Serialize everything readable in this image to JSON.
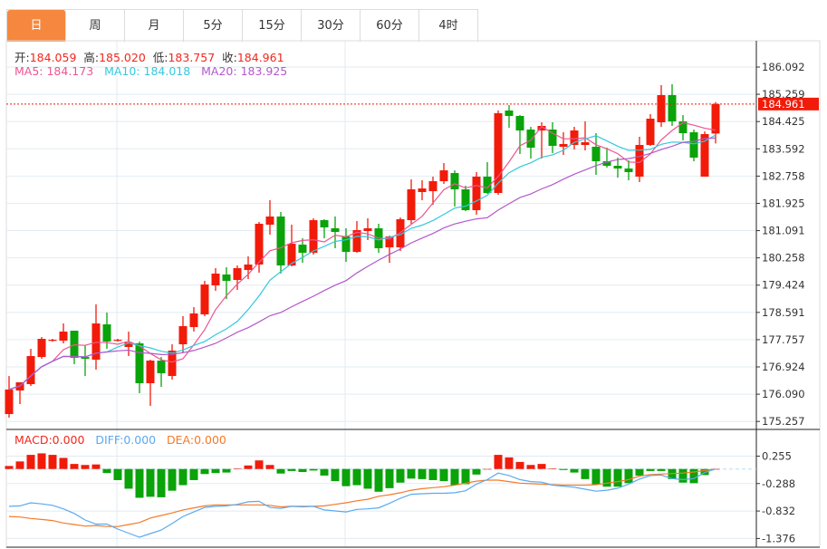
{
  "tabs": [
    {
      "label": "日",
      "active": true
    },
    {
      "label": "周"
    },
    {
      "label": "月"
    },
    {
      "label": "5分"
    },
    {
      "label": "15分"
    },
    {
      "label": "30分"
    },
    {
      "label": "60分"
    },
    {
      "label": "4时"
    }
  ],
  "ohlc": {
    "open_label": "开:",
    "open": "184.059",
    "high_label": "高:",
    "high": "185.020",
    "low_label": "低:",
    "low": "183.757",
    "close_label": "收:",
    "close": "184.961"
  },
  "ma": {
    "ma5": "MA5: 184.173",
    "ma10": "MA10: 184.018",
    "ma20": "MA20: 183.925"
  },
  "macd_legend": {
    "macd": "MACD:0.000",
    "diff": "DIFF:0.000",
    "dea": "DEA:0.000"
  },
  "colors": {
    "up": "#f21b0a",
    "down": "#0aa30a",
    "ma5": "#ee5590",
    "ma10": "#35c8de",
    "ma20": "#b457cc",
    "diff": "#5aaaf0",
    "dea": "#f57a28",
    "active_tab": "#f5883e",
    "grid": "#e2ebf2"
  },
  "chart_data": [
    {
      "type": "candlestick",
      "price_ticks": [
        "186.092",
        "185.259",
        "184.425",
        "183.592",
        "182.758",
        "181.925",
        "181.091",
        "180.258",
        "179.424",
        "178.591",
        "177.757",
        "176.924",
        "176.090",
        "175.257"
      ],
      "ylim": [
        175.257,
        186.092
      ],
      "last_price": "184.961",
      "moving_averages": [
        5,
        10,
        20
      ],
      "candles_ohlc": [
        [
          175.483,
          176.646,
          175.372,
          176.231
        ],
        [
          176.203,
          176.453,
          175.788,
          176.453
        ],
        [
          176.397,
          177.477,
          176.342,
          177.256
        ],
        [
          177.228,
          177.838,
          177.173,
          177.782
        ],
        [
          177.727,
          177.782,
          177.699,
          177.754
        ],
        [
          177.727,
          178.253,
          177.644,
          178.004
        ],
        [
          178.031,
          178.031,
          177.007,
          177.2
        ],
        [
          177.228,
          177.588,
          176.646,
          177.173
        ],
        [
          177.145,
          178.835,
          176.84,
          178.253
        ],
        [
          178.225,
          178.586,
          177.477,
          177.699
        ],
        [
          177.727,
          177.782,
          177.699,
          177.754
        ],
        [
          177.533,
          178.004,
          177.256,
          177.671
        ],
        [
          177.644,
          177.699,
          176.12,
          176.425
        ],
        [
          176.425,
          177.145,
          175.732,
          177.117
        ],
        [
          177.117,
          177.228,
          176.314,
          176.73
        ],
        [
          176.646,
          177.616,
          176.536,
          177.422
        ],
        [
          177.616,
          178.475,
          177.367,
          178.17
        ],
        [
          178.142,
          178.752,
          178.004,
          178.558
        ],
        [
          178.53,
          179.555,
          178.475,
          179.444
        ],
        [
          179.417,
          179.943,
          179.25,
          179.777
        ],
        [
          179.749,
          179.971,
          179.001,
          179.555
        ],
        [
          179.583,
          180.026,
          179.278,
          179.943
        ],
        [
          179.887,
          180.303,
          179.61,
          180.054
        ],
        [
          180.054,
          181.356,
          179.804,
          181.3
        ],
        [
          181.272,
          182.02,
          180.968,
          181.522
        ],
        [
          181.522,
          181.66,
          179.777,
          180.026
        ],
        [
          180.026,
          181.272,
          179.998,
          180.691
        ],
        [
          180.663,
          180.857,
          180.109,
          180.414
        ],
        [
          180.414,
          181.467,
          180.358,
          181.411
        ],
        [
          181.411,
          181.439,
          180.857,
          181.189
        ],
        [
          181.162,
          181.522,
          180.552,
          181.051
        ],
        [
          180.912,
          181.162,
          180.137,
          180.441
        ],
        [
          180.441,
          181.383,
          180.414,
          181.106
        ],
        [
          181.079,
          181.467,
          180.802,
          181.162
        ],
        [
          181.162,
          181.3,
          180.414,
          180.552
        ],
        [
          180.58,
          180.94,
          180.109,
          180.912
        ],
        [
          180.58,
          181.494,
          180.469,
          181.439
        ],
        [
          181.411,
          182.657,
          181.3,
          182.353
        ],
        [
          182.27,
          182.63,
          182.02,
          182.38
        ],
        [
          182.297,
          182.741,
          181.882,
          182.602
        ],
        [
          182.602,
          183.156,
          182.519,
          182.934
        ],
        [
          182.851,
          182.934,
          181.826,
          182.353
        ],
        [
          182.353,
          182.464,
          181.688,
          181.716
        ],
        [
          181.716,
          182.879,
          181.577,
          182.741
        ],
        [
          182.741,
          183.184,
          182.214,
          182.242
        ],
        [
          182.242,
          184.763,
          182.187,
          184.68
        ],
        [
          184.763,
          184.929,
          184.236,
          184.596
        ],
        [
          184.596,
          184.624,
          183.433,
          184.153
        ],
        [
          184.181,
          184.264,
          183.295,
          183.627
        ],
        [
          184.153,
          184.403,
          183.295,
          184.292
        ],
        [
          184.181,
          184.403,
          183.461,
          183.682
        ],
        [
          183.655,
          184.098,
          183.405,
          183.738
        ],
        [
          183.71,
          184.264,
          183.571,
          184.153
        ],
        [
          183.71,
          184.43,
          183.544,
          183.793
        ],
        [
          183.655,
          184.07,
          182.796,
          183.211
        ],
        [
          183.211,
          183.627,
          183.018,
          183.073
        ],
        [
          183.073,
          183.322,
          182.713,
          182.99
        ],
        [
          182.99,
          183.239,
          182.63,
          182.879
        ],
        [
          182.741,
          183.959,
          182.574,
          183.71
        ],
        [
          183.71,
          184.652,
          183.682,
          184.513
        ],
        [
          184.403,
          185.538,
          184.264,
          185.234
        ],
        [
          185.234,
          185.566,
          184.292,
          184.43
        ],
        [
          184.43,
          184.624,
          183.849,
          184.07
        ],
        [
          184.098,
          184.181,
          183.211,
          183.322
        ],
        [
          182.741,
          184.125,
          182.741,
          184.042
        ],
        [
          184.059,
          185.02,
          183.757,
          184.961
        ]
      ]
    },
    {
      "type": "bar+line",
      "ticks": [
        "0.255",
        "-0.288",
        "-0.832",
        "-1.376"
      ],
      "ylim": [
        -1.5,
        0.55
      ],
      "macd_hist": [
        0.06,
        0.15,
        0.28,
        0.31,
        0.28,
        0.22,
        0.1,
        0.08,
        0.09,
        -0.08,
        -0.22,
        -0.39,
        -0.57,
        -0.55,
        -0.56,
        -0.43,
        -0.32,
        -0.22,
        -0.1,
        -0.08,
        -0.07,
        0.01,
        0.07,
        0.17,
        0.08,
        -0.09,
        -0.04,
        -0.06,
        -0.03,
        -0.13,
        -0.24,
        -0.34,
        -0.32,
        -0.39,
        -0.45,
        -0.38,
        -0.27,
        -0.19,
        -0.2,
        -0.22,
        -0.24,
        -0.32,
        -0.3,
        -0.11,
        0.0,
        0.28,
        0.23,
        0.14,
        0.08,
        0.1,
        0.01,
        -0.02,
        -0.07,
        -0.2,
        -0.31,
        -0.35,
        -0.35,
        -0.28,
        -0.13,
        -0.04,
        -0.04,
        -0.2,
        -0.27,
        -0.28,
        -0.12,
        0.0
      ],
      "diff": [
        -0.74,
        -0.73,
        -0.67,
        -0.69,
        -0.72,
        -0.79,
        -0.88,
        -1.01,
        -1.09,
        -1.09,
        -1.19,
        -1.27,
        -1.35,
        -1.28,
        -1.21,
        -1.08,
        -0.94,
        -0.85,
        -0.76,
        -0.74,
        -0.73,
        -0.7,
        -0.65,
        -0.64,
        -0.76,
        -0.78,
        -0.74,
        -0.75,
        -0.74,
        -0.81,
        -0.83,
        -0.85,
        -0.8,
        -0.79,
        -0.77,
        -0.68,
        -0.58,
        -0.5,
        -0.49,
        -0.48,
        -0.48,
        -0.47,
        -0.43,
        -0.3,
        -0.21,
        -0.08,
        -0.13,
        -0.21,
        -0.25,
        -0.26,
        -0.32,
        -0.34,
        -0.36,
        -0.4,
        -0.44,
        -0.42,
        -0.38,
        -0.3,
        -0.2,
        -0.13,
        -0.12,
        -0.19,
        -0.21,
        -0.19,
        -0.07,
        0.0
      ],
      "dea": [
        -0.94,
        -0.95,
        -0.98,
        -1.0,
        -1.02,
        -1.07,
        -1.1,
        -1.13,
        -1.12,
        -1.14,
        -1.14,
        -1.1,
        -1.06,
        -0.97,
        -0.92,
        -0.87,
        -0.81,
        -0.77,
        -0.73,
        -0.71,
        -0.71,
        -0.71,
        -0.71,
        -0.71,
        -0.72,
        -0.75,
        -0.74,
        -0.74,
        -0.74,
        -0.73,
        -0.7,
        -0.67,
        -0.63,
        -0.6,
        -0.54,
        -0.51,
        -0.47,
        -0.42,
        -0.39,
        -0.37,
        -0.35,
        -0.32,
        -0.28,
        -0.24,
        -0.22,
        -0.22,
        -0.25,
        -0.28,
        -0.29,
        -0.3,
        -0.31,
        -0.32,
        -0.32,
        -0.32,
        -0.31,
        -0.28,
        -0.25,
        -0.21,
        -0.14,
        -0.11,
        -0.1,
        -0.09,
        -0.08,
        -0.06,
        -0.03,
        0.0
      ]
    }
  ]
}
